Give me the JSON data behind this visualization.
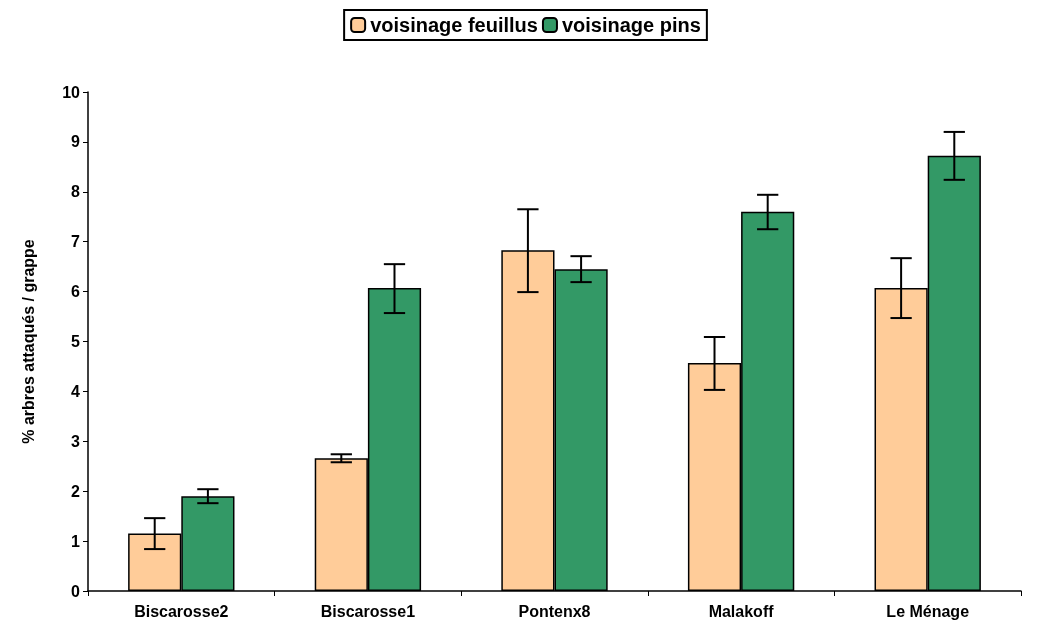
{
  "chart_data": {
    "type": "bar",
    "ylabel": "% arbres attaqués / grappe",
    "categories": [
      "Biscarosse2",
      "Biscarosse1",
      "Pontenx8",
      "Malakoff",
      "Le Ménage"
    ],
    "series": [
      {
        "name": "voisinage feuillus",
        "color": "#ffcc99",
        "values": [
          1.15,
          2.66,
          6.83,
          4.57,
          6.07
        ],
        "errors": [
          [
            0.84,
            1.46
          ],
          [
            2.58,
            2.74
          ],
          [
            5.99,
            7.65
          ],
          [
            4.03,
            5.09
          ],
          [
            5.47,
            6.67
          ]
        ]
      },
      {
        "name": "voisinage pins",
        "color": "#339966",
        "values": [
          1.9,
          6.07,
          6.45,
          7.6,
          8.72
        ],
        "errors": [
          [
            1.76,
            2.04
          ],
          [
            5.57,
            6.55
          ],
          [
            6.19,
            6.71
          ],
          [
            7.25,
            7.94
          ],
          [
            8.24,
            9.2
          ]
        ]
      }
    ],
    "ylim": [
      0,
      10
    ],
    "yticks": [
      0,
      1,
      2,
      3,
      4,
      5,
      6,
      7,
      8,
      9,
      10
    ],
    "grid": false,
    "legend": "top"
  }
}
